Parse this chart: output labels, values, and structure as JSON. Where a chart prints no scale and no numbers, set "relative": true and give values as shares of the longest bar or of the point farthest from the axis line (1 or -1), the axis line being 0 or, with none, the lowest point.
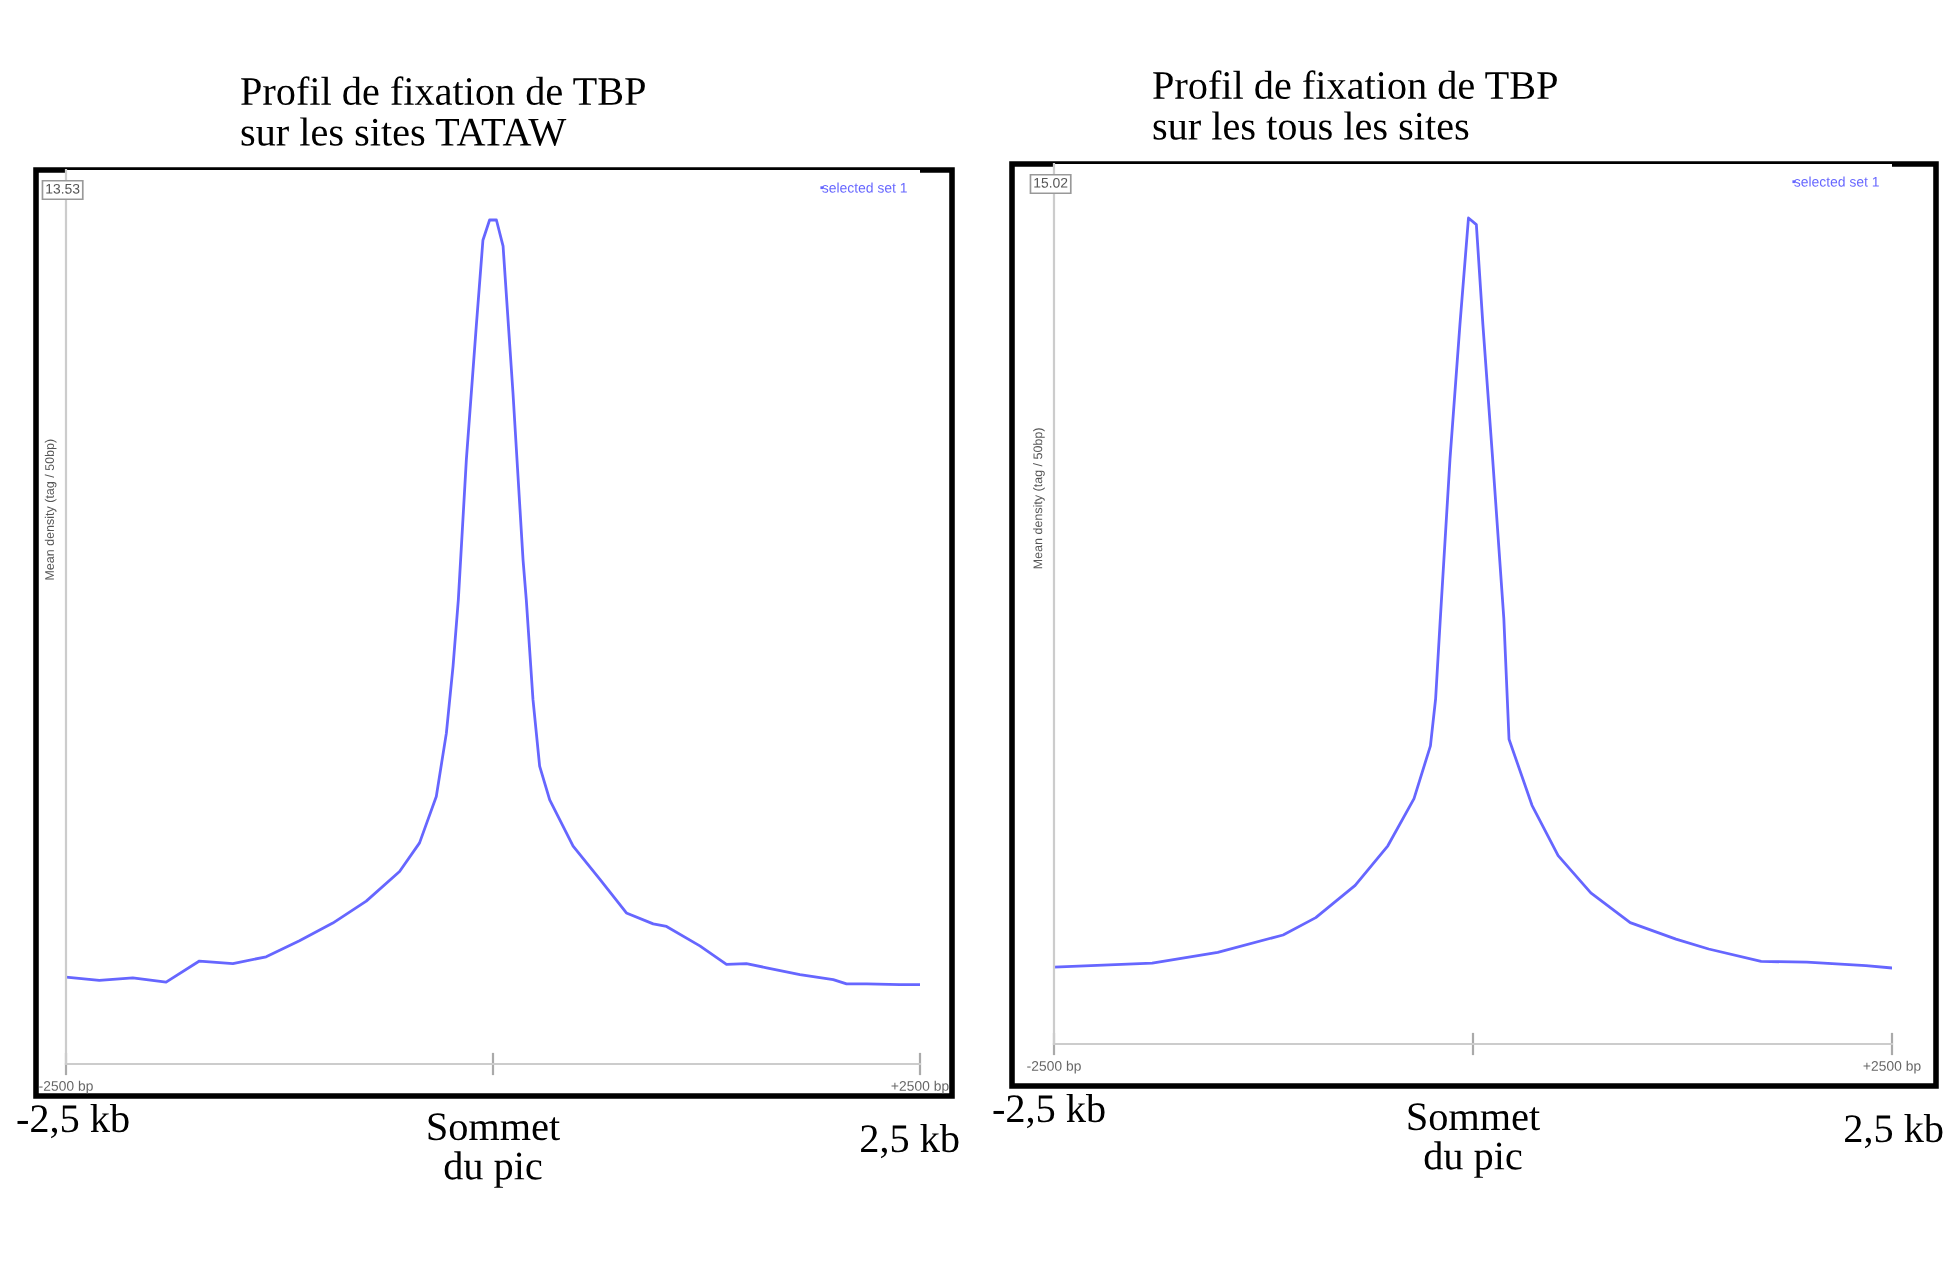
{
  "chart_data": [
    {
      "type": "line",
      "title": "Profil de fixation de TBP\nsur les sites TATAW",
      "xlabel": "Sommet\ndu pic",
      "ylabel": "Mean density (tag / 50bp)",
      "relative": true,
      "legend": "top right",
      "grid": false,
      "xlim": [
        -2500,
        2500
      ],
      "xticks": [
        {
          "value": -2500,
          "label": "-2500 bp"
        },
        {
          "value": 0,
          "label": null
        },
        {
          "value": 2500,
          "label": "+2500 bp"
        }
      ],
      "annotations": [
        "13.53",
        "-2,5 kb",
        "2,5 kb"
      ],
      "series": [
        {
          "name": "selected set 1",
          "color": "#6666ff",
          "x": [
            -2500,
            -2305,
            -2109,
            -1914,
            -1719,
            -1523,
            -1328,
            -1133,
            -938,
            -742,
            -547,
            -430,
            -332,
            -273,
            -234,
            -203,
            -156,
            -98,
            -59,
            -20,
            20,
            59,
            117,
            176,
            195,
            234,
            273,
            332,
            469,
            625,
            781,
            938,
            1016,
            1211,
            1367,
            1484,
            1602,
            1797,
            1992,
            2070,
            2188,
            2383,
            2500
          ],
          "values": [
            0.103,
            0.099,
            0.102,
            0.097,
            0.122,
            0.119,
            0.127,
            0.146,
            0.167,
            0.193,
            0.228,
            0.262,
            0.317,
            0.392,
            0.471,
            0.55,
            0.716,
            0.874,
            0.976,
            1.0,
            1.0,
            0.969,
            0.795,
            0.597,
            0.55,
            0.432,
            0.353,
            0.313,
            0.258,
            0.219,
            0.179,
            0.166,
            0.163,
            0.14,
            0.118,
            0.119,
            0.114,
            0.106,
            0.1,
            0.095,
            0.095,
            0.094,
            0.094
          ]
        }
      ]
    },
    {
      "type": "line",
      "title": "Profil de fixation de TBP\nsur les tous les sites",
      "xlabel": "Sommet\ndu pic",
      "ylabel": "Mean density (tag / 50bp)",
      "relative": true,
      "legend": "top right",
      "grid": false,
      "xlim": [
        -2500,
        2500
      ],
      "xticks": [
        {
          "value": -2500,
          "label": "-2500 bp"
        },
        {
          "value": 0,
          "label": null
        },
        {
          "value": 2500,
          "label": "+2500 bp"
        }
      ],
      "annotations": [
        "15.02",
        "-2,5 kb",
        "2,5 kb"
      ],
      "series": [
        {
          "name": "selected set 1",
          "color": "#6666ff",
          "x": [
            -2500,
            -1914,
            -1523,
            -1133,
            -938,
            -703,
            -508,
            -352,
            -254,
            -223,
            -195,
            -137,
            -78,
            -27,
            20,
            59,
            117,
            184,
            215,
            352,
            508,
            703,
            938,
            1211,
            1406,
            1719,
            1992,
            2344,
            2500
          ],
          "values": [
            0.093,
            0.098,
            0.111,
            0.132,
            0.153,
            0.192,
            0.24,
            0.297,
            0.361,
            0.418,
            0.515,
            0.709,
            0.871,
            1.0,
            0.992,
            0.871,
            0.709,
            0.515,
            0.369,
            0.289,
            0.228,
            0.183,
            0.147,
            0.127,
            0.115,
            0.1,
            0.099,
            0.095,
            0.092
          ]
        }
      ]
    }
  ]
}
